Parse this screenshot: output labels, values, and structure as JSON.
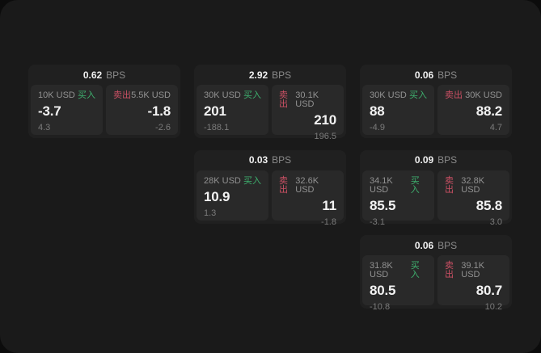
{
  "labels": {
    "bps_unit": "BPS",
    "buy": "买入",
    "sell": "卖出"
  },
  "colors": {
    "panel_bg": "#1a1a1a",
    "card_bg": "#202020",
    "pane_bg": "#292929",
    "buy_green": "#3eb06e",
    "sell_red": "#cb5064"
  },
  "cards": [
    {
      "row": 1,
      "col": 1,
      "bps": "0.62",
      "buy": {
        "size": "10K USD",
        "price": "-3.7",
        "delta": "4.3"
      },
      "sell": {
        "size": "5.5K USD",
        "price": "-1.8",
        "delta": "-2.6"
      }
    },
    {
      "row": 1,
      "col": 2,
      "bps": "2.92",
      "buy": {
        "size": "30K USD",
        "price": "201",
        "delta": "-188.1"
      },
      "sell": {
        "size": "30.1K USD",
        "price": "210",
        "delta": "196.5"
      }
    },
    {
      "row": 1,
      "col": 3,
      "bps": "0.06",
      "buy": {
        "size": "30K USD",
        "price": "88",
        "delta": "-4.9"
      },
      "sell": {
        "size": "30K USD",
        "price": "88.2",
        "delta": "4.7"
      }
    },
    {
      "row": 2,
      "col": 2,
      "bps": "0.03",
      "buy": {
        "size": "28K USD",
        "price": "10.9",
        "delta": "1.3"
      },
      "sell": {
        "size": "32.6K USD",
        "price": "11",
        "delta": "-1.8"
      }
    },
    {
      "row": 2,
      "col": 3,
      "bps": "0.09",
      "buy": {
        "size": "34.1K USD",
        "price": "85.5",
        "delta": "-3.1"
      },
      "sell": {
        "size": "32.8K USD",
        "price": "85.8",
        "delta": "3.0"
      }
    },
    {
      "row": 3,
      "col": 3,
      "bps": "0.06",
      "buy": {
        "size": "31.8K USD",
        "price": "80.5",
        "delta": "-10.8"
      },
      "sell": {
        "size": "39.1K USD",
        "price": "80.7",
        "delta": "10.2"
      }
    }
  ]
}
